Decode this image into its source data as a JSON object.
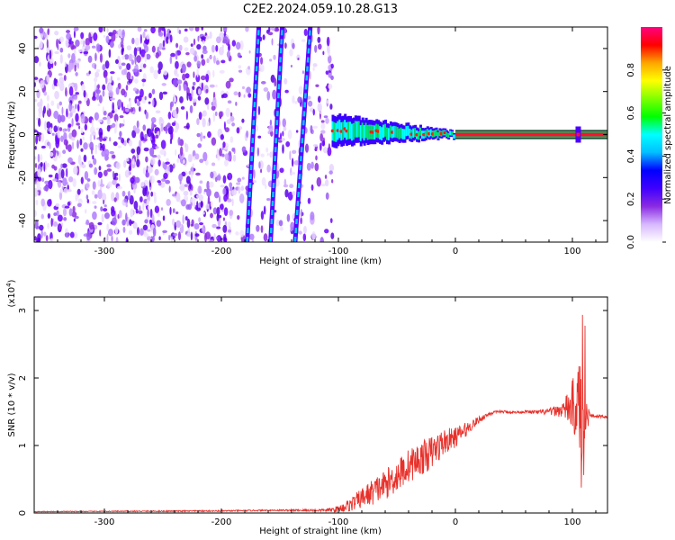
{
  "title": "C2E2.2024.059.10.28.G13",
  "chart_data": [
    {
      "type": "heatmap",
      "xlabel": "Height of straight line (km)",
      "ylabel": "Frequency (Hz)",
      "xlim": [
        -360,
        130
      ],
      "ylim": [
        -50,
        50
      ],
      "xticks": [
        -300,
        -200,
        -100,
        0,
        100
      ],
      "yticks": [
        -40,
        -20,
        0,
        20,
        40
      ],
      "colorbar": {
        "label": "Normalized spectral amplitude",
        "range": [
          0.0,
          1.0
        ],
        "ticks": [
          "0.0",
          "0.2",
          "0.4",
          "0.6",
          "0.8"
        ],
        "colors": [
          "#ffffff",
          "#d7b7ff",
          "#8a2be2",
          "#3f00ff",
          "#0000ff",
          "#00bfff",
          "#00ffff",
          "#00ff00",
          "#7fff00",
          "#ffff00",
          "#ffa500",
          "#ff0000",
          "#ff0080"
        ]
      },
      "features": {
        "carrier_line": {
          "x_start": -105,
          "x_end": 130,
          "freq_hz": 0
        },
        "diagonal_traces": [
          {
            "x": [
              -178,
              -168
            ],
            "y": [
              -50,
              50
            ]
          },
          {
            "x": [
              -158,
              -148
            ],
            "y": [
              -50,
              50
            ]
          },
          {
            "x": [
              -137,
              -124
            ],
            "y": [
              -50,
              50
            ]
          }
        ]
      }
    },
    {
      "type": "line",
      "xlabel": "Height of straight line (km)",
      "ylabel": "SNR (10 * v/v)",
      "yscale_label": "(x10",
      "yscale_exp": "4",
      "yscale_close": ")",
      "xlim": [
        -360,
        130
      ],
      "ylim": [
        0,
        3.2
      ],
      "xticks": [
        -300,
        -200,
        -100,
        0,
        100
      ],
      "yticks": [
        0,
        1,
        2,
        3
      ],
      "series": [
        {
          "color": "#e8302a",
          "x": [
            -360,
            -200,
            -160,
            -110,
            -100,
            -90,
            -80,
            -70,
            -60,
            -50,
            -40,
            -30,
            -20,
            -10,
            0,
            10,
            20,
            30,
            40,
            50,
            60,
            70,
            80,
            90,
            95,
            100,
            105,
            108,
            112,
            115,
            120,
            125,
            130
          ],
          "y": [
            0.02,
            0.03,
            0.04,
            0.04,
            0.06,
            0.12,
            0.22,
            0.32,
            0.42,
            0.55,
            0.7,
            0.8,
            0.9,
            1.05,
            1.12,
            1.25,
            1.38,
            1.48,
            1.5,
            1.49,
            1.5,
            1.49,
            1.5,
            1.52,
            1.55,
            1.58,
            1.6,
            1.5,
            1.44,
            1.44,
            1.43,
            1.43,
            1.42
          ],
          "noise": [
            0.005,
            0.01,
            0.01,
            0.02,
            0.05,
            0.1,
            0.15,
            0.2,
            0.22,
            0.25,
            0.25,
            0.25,
            0.25,
            0.2,
            0.15,
            0.1,
            0.05,
            0.03,
            0.02,
            0.02,
            0.02,
            0.03,
            0.05,
            0.1,
            0.2,
            0.4,
            0.6,
            0.8,
            0.3,
            0.02,
            0.02,
            0.02,
            0.02
          ]
        }
      ]
    }
  ]
}
